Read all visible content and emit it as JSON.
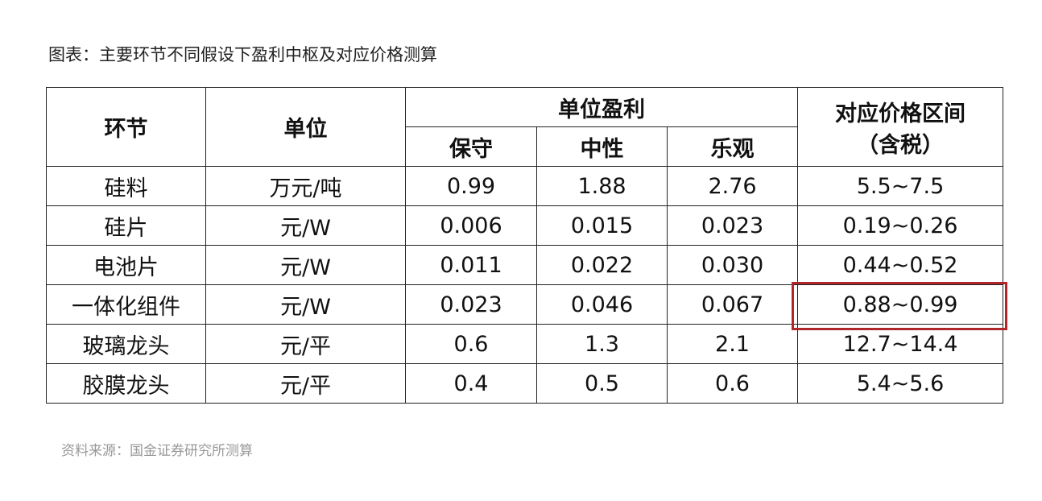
{
  "title": "图表：主要环节不同假设下盈利中枢及对应价格测算",
  "headers": {
    "segment": "环节",
    "unit": "单位",
    "unit_profit": "单位盈利",
    "conservative": "保守",
    "neutral": "中性",
    "optimistic": "乐观",
    "price_range_line1": "对应价格区间",
    "price_range_line2": "（含税）"
  },
  "rows": [
    {
      "segment": "硅料",
      "unit": "万元/吨",
      "conservative": "0.99",
      "neutral": "1.88",
      "optimistic": "2.76",
      "price_range": "5.5~7.5"
    },
    {
      "segment": "硅片",
      "unit": "元/W",
      "conservative": "0.006",
      "neutral": "0.015",
      "optimistic": "0.023",
      "price_range": "0.19~0.26"
    },
    {
      "segment": "电池片",
      "unit": "元/W",
      "conservative": "0.011",
      "neutral": "0.022",
      "optimistic": "0.030",
      "price_range": "0.44~0.52"
    },
    {
      "segment": "一体化组件",
      "unit": "元/W",
      "conservative": "0.023",
      "neutral": "0.046",
      "optimistic": "0.067",
      "price_range": "0.88~0.99"
    },
    {
      "segment": "玻璃龙头",
      "unit": "元/平",
      "conservative": "0.6",
      "neutral": "1.3",
      "optimistic": "2.1",
      "price_range": "12.7~14.4"
    },
    {
      "segment": "胶膜龙头",
      "unit": "元/平",
      "conservative": "0.4",
      "neutral": "0.5",
      "optimistic": "0.6",
      "price_range": "5.4~5.6"
    }
  ],
  "highlight_color": "#b0262a",
  "source": "资料来源：国金证券研究所测算"
}
